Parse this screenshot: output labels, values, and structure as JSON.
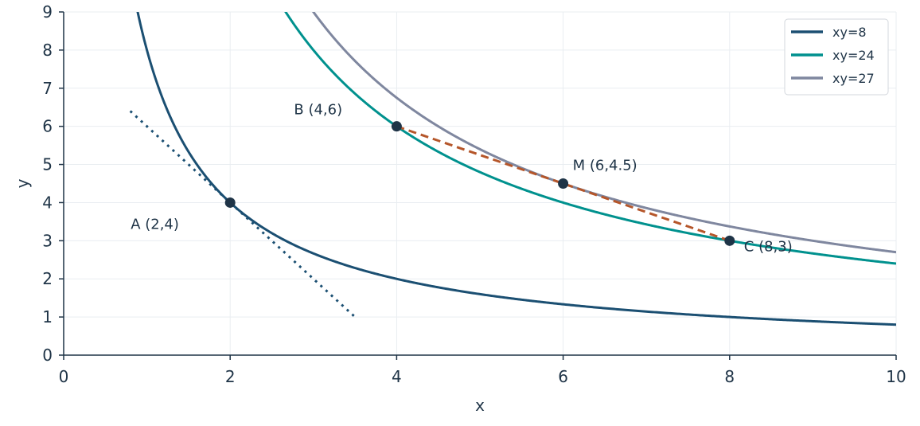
{
  "chart_data": {
    "type": "line",
    "xlabel": "x",
    "ylabel": "y",
    "xlim": [
      0,
      10
    ],
    "ylim": [
      0,
      9
    ],
    "xticks": [
      "0",
      "2",
      "4",
      "6",
      "8",
      "10"
    ],
    "yticks": [
      "0",
      "1",
      "2",
      "3",
      "4",
      "5",
      "6",
      "7",
      "8",
      "9"
    ],
    "grid": true,
    "legend_position": "top-right",
    "series": [
      {
        "name": "xy=8",
        "k": 8,
        "color": "#1b4f72",
        "style": "solid"
      },
      {
        "name": "xy=24",
        "k": 24,
        "color": "#00918e",
        "style": "solid"
      },
      {
        "name": "xy=27",
        "k": 27,
        "color": "#7f879f",
        "style": "solid"
      }
    ],
    "tangent_line": {
      "color": "#1b4f72",
      "style": "dotted",
      "x": [
        0.8,
        3.5
      ],
      "y": [
        6.4,
        1.0
      ]
    },
    "chord_line": {
      "color": "#b5562a",
      "style": "dashed",
      "x": [
        4,
        8
      ],
      "y": [
        6,
        3
      ]
    },
    "points": [
      {
        "label": "A (2,4)",
        "x": 2,
        "y": 4
      },
      {
        "label": "B (4,6)",
        "x": 4,
        "y": 6
      },
      {
        "label": "M (6,4.5)",
        "x": 6,
        "y": 4.5
      },
      {
        "label": "C (8,3)",
        "x": 8,
        "y": 3
      }
    ],
    "colors": {
      "axis": "#1f3447",
      "grid": "#e9edf1",
      "point": "#1f3447"
    }
  }
}
